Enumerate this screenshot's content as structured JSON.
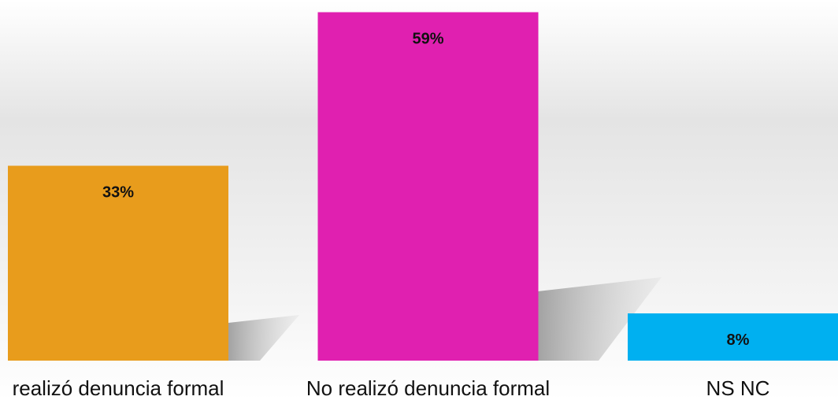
{
  "chart_data": {
    "type": "bar",
    "categories": [
      "realizó denuncia formal",
      "No realizó denuncia formal",
      "NS NC"
    ],
    "values": [
      33,
      59,
      8
    ],
    "value_labels": [
      "33%",
      "59%",
      "8%"
    ],
    "colors": [
      "#e89c1c",
      "#e020b0",
      "#00b0f0"
    ]
  }
}
